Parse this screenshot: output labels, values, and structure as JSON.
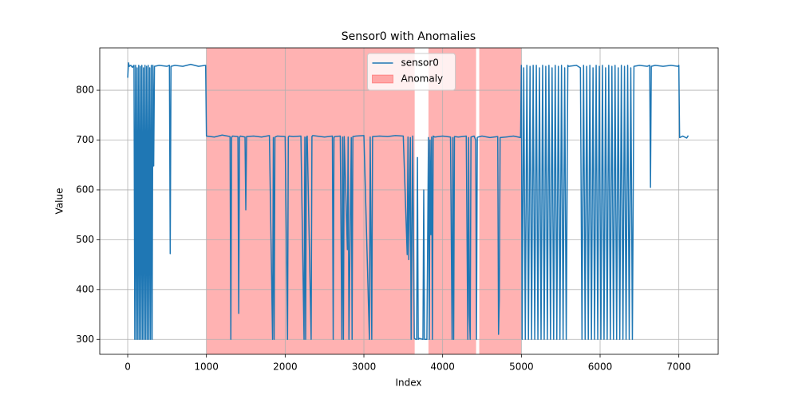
{
  "chart_data": {
    "type": "line",
    "title": "Sensor0 with Anomalies",
    "x_label": "Index",
    "y_label": "Value",
    "xlim": [
      -355,
      7500
    ],
    "ylim": [
      270,
      885
    ],
    "xticks": [
      0,
      1000,
      2000,
      3000,
      4000,
      5000,
      6000,
      7000
    ],
    "yticks": [
      300,
      400,
      500,
      600,
      700,
      800
    ],
    "grid": true,
    "legend": "upper center",
    "series": [
      {
        "name": "sensor0",
        "color": "#1f77b4",
        "x": [
          0,
          10,
          20,
          40,
          60,
          80,
          90,
          100,
          110,
          120,
          130,
          140,
          150,
          160,
          170,
          180,
          190,
          200,
          210,
          220,
          230,
          240,
          250,
          260,
          270,
          280,
          290,
          300,
          310,
          320,
          330,
          340,
          400,
          500,
          530,
          540,
          550,
          600,
          700,
          800,
          900,
          990,
          1000,
          1100,
          1200,
          1300,
          1310,
          1320,
          1330,
          1400,
          1410,
          1420,
          1430,
          1490,
          1500,
          1510,
          1600,
          1700,
          1800,
          1840,
          1850,
          1860,
          1870,
          1900,
          2000,
          2030,
          2040,
          2050,
          2100,
          2200,
          2240,
          2250,
          2260,
          2270,
          2280,
          2330,
          2340,
          2350,
          2400,
          2500,
          2600,
          2610,
          2620,
          2630,
          2700,
          2720,
          2730,
          2740,
          2750,
          2790,
          2800,
          2810,
          2840,
          2850,
          2860,
          2900,
          3000,
          3070,
          3080,
          3100,
          3110,
          3200,
          3300,
          3400,
          3500,
          3550,
          3560,
          3570,
          3590,
          3600,
          3620,
          3640,
          3660,
          3670,
          3680,
          3690,
          3700,
          3750,
          3760,
          3770,
          3800,
          3820,
          3830,
          3840,
          3850,
          3860,
          3870,
          3880,
          3900,
          4000,
          4100,
          4120,
          4130,
          4140,
          4150,
          4200,
          4300,
          4320,
          4330,
          4340,
          4350,
          4360,
          4400,
          4420,
          4430,
          4440,
          4450,
          4500,
          4600,
          4700,
          4710,
          4720,
          4730,
          4800,
          4900,
          4990,
          5000,
          5010,
          5030,
          5050,
          5070,
          5090,
          5110,
          5130,
          5150,
          5170,
          5190,
          5210,
          5230,
          5250,
          5270,
          5290,
          5310,
          5330,
          5350,
          5370,
          5390,
          5410,
          5430,
          5450,
          5470,
          5490,
          5510,
          5530,
          5550,
          5570,
          5590,
          5600,
          5700,
          5750,
          5770,
          5790,
          5810,
          5830,
          5850,
          5870,
          5890,
          5910,
          5930,
          5950,
          5970,
          5990,
          6010,
          6030,
          6050,
          6070,
          6090,
          6110,
          6130,
          6150,
          6170,
          6190,
          6210,
          6230,
          6250,
          6270,
          6290,
          6310,
          6330,
          6350,
          6370,
          6390,
          6410,
          6430,
          6500,
          6600,
          6630,
          6640,
          6650,
          6700,
          6800,
          6900,
          6990,
          7000,
          7010,
          7050,
          7100,
          7120
        ],
        "values": [
          825,
          855,
          848,
          850,
          846,
          850,
          300,
          850,
          300,
          845,
          300,
          850,
          300,
          848,
          300,
          850,
          300,
          845,
          300,
          850,
          300,
          848,
          300,
          850,
          300,
          845,
          300,
          850,
          300,
          850,
          648,
          848,
          850,
          848,
          850,
          472,
          848,
          850,
          848,
          852,
          848,
          850,
          708,
          706,
          710,
          707,
          300,
          705,
          708,
          707,
          352,
          705,
          708,
          706,
          560,
          707,
          708,
          706,
          709,
          300,
          705,
          300,
          706,
          708,
          707,
          300,
          706,
          708,
          707,
          708,
          300,
          706,
          300,
          705,
          708,
          300,
          707,
          709,
          708,
          706,
          708,
          300,
          705,
          707,
          708,
          300,
          706,
          300,
          707,
          480,
          706,
          300,
          705,
          300,
          707,
          708,
          709,
          300,
          706,
          300,
          707,
          708,
          707,
          709,
          708,
          470,
          706,
          460,
          705,
          300,
          708,
          302,
          300,
          300,
          665,
          300,
          302,
          300,
          600,
          300,
          300,
          705,
          300,
          700,
          510,
          706,
          300,
          708,
          706,
          708,
          706,
          300,
          705,
          300,
          707,
          706,
          708,
          300,
          705,
          350,
          300,
          706,
          708,
          700,
          300,
          705,
          706,
          708,
          705,
          707,
          310,
          380,
          705,
          706,
          708,
          705,
          850,
          300,
          845,
          300,
          850,
          300,
          848,
          300,
          850,
          300,
          850,
          300,
          845,
          300,
          850,
          300,
          848,
          300,
          850,
          300,
          845,
          300,
          850,
          300,
          848,
          300,
          850,
          300,
          845,
          300,
          850,
          848,
          850,
          845,
          300,
          850,
          300,
          848,
          300,
          850,
          300,
          845,
          300,
          850,
          300,
          848,
          300,
          850,
          300,
          845,
          300,
          850,
          300,
          848,
          300,
          850,
          300,
          845,
          300,
          850,
          300,
          848,
          300,
          850,
          300,
          845,
          300,
          848,
          850,
          848,
          850,
          605,
          848,
          850,
          848,
          850,
          848,
          850,
          705,
          708,
          704,
          709
        ]
      }
    ],
    "anomalies": {
      "name": "Anomaly",
      "color": "#ff0000",
      "alpha": 0.3,
      "spans": [
        [
          1000,
          3645
        ],
        [
          3820,
          4425
        ],
        [
          4465,
          5000
        ]
      ]
    }
  }
}
